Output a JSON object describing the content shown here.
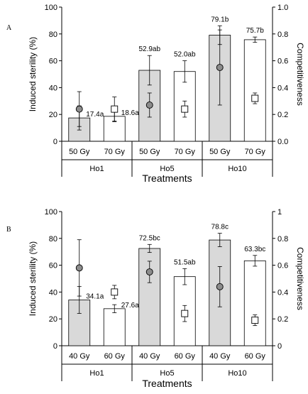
{
  "chart_data": [
    {
      "type": "bar",
      "panel_label": "A",
      "groups": [
        "Ho1",
        "Ho5",
        "Ho10"
      ],
      "categories": [
        "50 Gy",
        "70 Gy",
        "50 Gy",
        "70 Gy",
        "50 Gy",
        "70 Gy"
      ],
      "category_group_index": [
        0,
        0,
        1,
        1,
        2,
        2
      ],
      "xlabel": "Treatments",
      "ylabel": "Induced sterility (%)",
      "ylabel_right": "Competitiveness",
      "ylim": [
        0,
        100
      ],
      "ylim_right": [
        0,
        1
      ],
      "yticks": [
        "0",
        "20",
        "40",
        "60",
        "80",
        "100"
      ],
      "yticks_right": [
        "0.0",
        "0.2",
        "0.4",
        "0.6",
        "0.8",
        "1.0"
      ],
      "bar_fill": [
        "#d9d9d9",
        "#ffffff",
        "#d9d9d9",
        "#ffffff",
        "#d9d9d9",
        "#ffffff"
      ],
      "sterility": [
        17.4,
        18.6,
        52.9,
        52.0,
        79.1,
        75.7
      ],
      "sterility_err": [
        9,
        4,
        11,
        8,
        7,
        2
      ],
      "sterility_labels": [
        "17.4a",
        "18.6a",
        "52.9ab",
        "52.0ab",
        "79.1b",
        "75.7b"
      ],
      "competitiveness": [
        0.24,
        0.24,
        0.27,
        0.24,
        0.55,
        0.32
      ],
      "competitiveness_err": [
        0.13,
        0.09,
        0.09,
        0.06,
        0.28,
        0.04
      ],
      "competitiveness_marker": [
        "circle",
        "square",
        "circle",
        "square",
        "circle",
        "square"
      ]
    },
    {
      "type": "bar",
      "panel_label": "B",
      "groups": [
        "Ho1",
        "Ho5",
        "Ho10"
      ],
      "categories": [
        "40 Gy",
        "60 Gy",
        "40 Gy",
        "60 Gy",
        "40 Gy",
        "60 Gy"
      ],
      "category_group_index": [
        0,
        0,
        1,
        1,
        2,
        2
      ],
      "xlabel": "Treatments",
      "ylabel": "Induced sterility (%)",
      "ylabel_right": "Competitiveness",
      "ylim": [
        0,
        100
      ],
      "ylim_right": [
        0,
        1
      ],
      "yticks": [
        "0",
        "20",
        "40",
        "60",
        "80",
        "100"
      ],
      "yticks_right": [
        "0",
        "0.2",
        "0.4",
        "0.6",
        "0.8",
        "1"
      ],
      "bar_fill": [
        "#d9d9d9",
        "#ffffff",
        "#d9d9d9",
        "#ffffff",
        "#d9d9d9",
        "#ffffff"
      ],
      "sterility": [
        34.1,
        27.6,
        72.5,
        51.5,
        78.8,
        63.3
      ],
      "sterility_err": [
        10,
        3,
        3,
        6,
        5,
        4
      ],
      "sterility_labels": [
        "34.1a",
        "27.6a",
        "72.5bc",
        "51.5ab",
        "78.8c",
        "63.3bc"
      ],
      "competitiveness": [
        0.58,
        0.4,
        0.55,
        0.24,
        0.44,
        0.19
      ],
      "competitiveness_err": [
        0.21,
        0.05,
        0.08,
        0.06,
        0.15,
        0.04
      ],
      "competitiveness_marker": [
        "circle",
        "square",
        "circle",
        "square",
        "circle",
        "square"
      ]
    }
  ]
}
